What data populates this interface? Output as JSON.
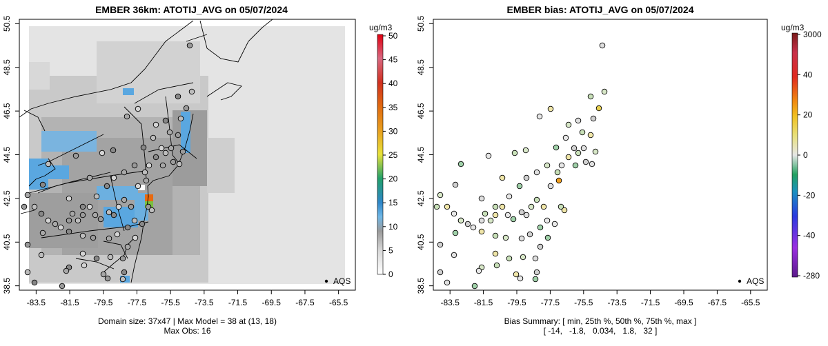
{
  "left": {
    "title": "EMBER 36km: ATOTIJ_AVG on 05/07/2024",
    "caption_line1": "Domain size: 37x47 | Max Model = 38 at (13, 18)",
    "caption_line2": "Max Obs: 16",
    "unit": "ug/m3",
    "colorbar_ticks": [
      "50",
      "45",
      "40",
      "35",
      "30",
      "25",
      "20",
      "15",
      "10",
      "5",
      "0"
    ],
    "legend_label": "AQS"
  },
  "right": {
    "title": "EMBER bias: ATOTIJ_AVG on 05/07/2024",
    "caption_line1": "Bias Summary: [ min, 25th %, 50th %, 75th %, max ]",
    "caption_line2": "[ -14,   -1.8,   0.034,   1.8,   32 ]",
    "unit": "ug/m3",
    "colorbar_ticks": [
      "3000",
      "40",
      "20",
      "0",
      "-20",
      "-40",
      "-280"
    ],
    "legend_label": "AQS"
  },
  "axes": {
    "x_ticks": [
      "-83.5",
      "-81.5",
      "-79.5",
      "-77.5",
      "-75.5",
      "-73.5",
      "-71.5",
      "-69.5",
      "-67.5",
      "-65.5"
    ],
    "y_ticks": [
      "50.5",
      "48.5",
      "46.5",
      "44.5",
      "42.5",
      "40.5",
      "38.5"
    ],
    "x_range": [
      -84.5,
      -64.5
    ],
    "y_range": [
      38.3,
      50.7
    ]
  },
  "colors": {
    "grid_light": "#e4e4e4",
    "grid_mid": "#bdbdbd",
    "grid_dark": "#8e8e8e",
    "blue": "#5aa7e0",
    "hot": "#e86a10"
  }
}
